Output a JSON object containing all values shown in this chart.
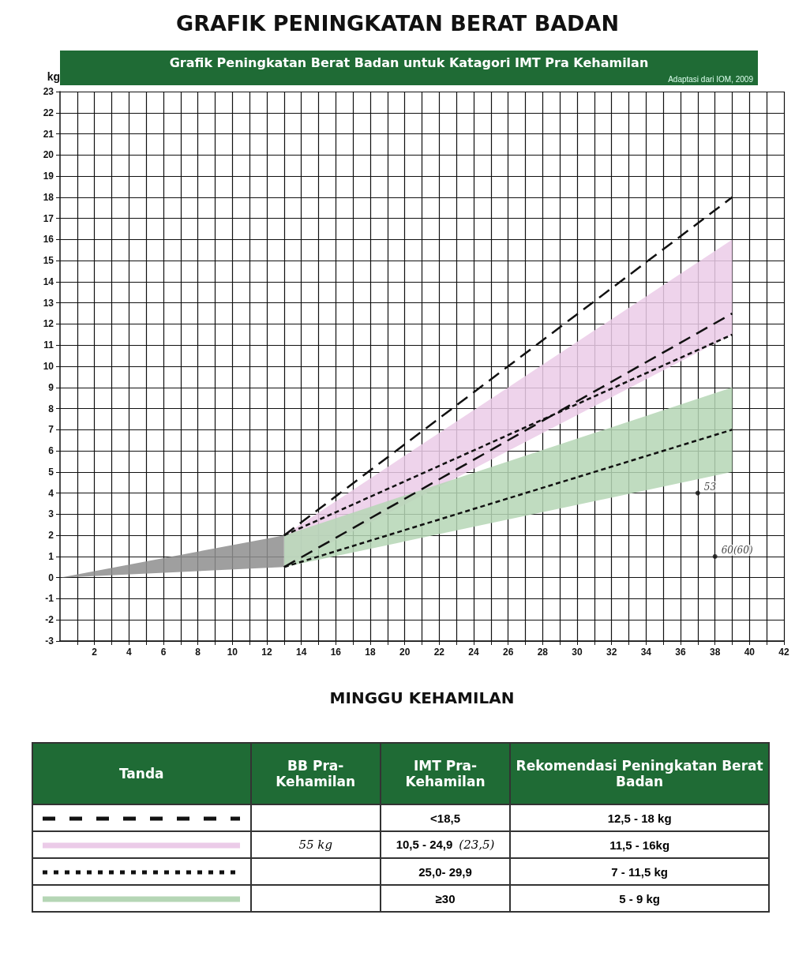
{
  "chart_data": {
    "type": "line",
    "title": "GRAFIK PENINGKATAN BERAT BADAN",
    "subtitle": "Grafik Peningkatan Berat Badan untuk Katagori IMT Pra Kehamilan",
    "xlabel": "MINGGU KEHAMILAN",
    "ylabel": "kg",
    "annotations": [
      {
        "text": "53",
        "x": 37,
        "y": 4
      },
      {
        "text": "60(60)",
        "x": 38,
        "y": 1
      },
      "Adaptasi dari IOM, 2009",
      "Tanda",
      "BB Pra-Kehamilan",
      "IMT Pra-Kehamilan",
      "Rekomendasi Peningkatan Berat Badan",
      "<18,5",
      "12,5 - 18 kg",
      "55 kg",
      "10,5 - 24,9",
      "(23,5)",
      "11,5 - 16kg",
      "25,0- 29,9",
      "7 - 11,5 kg",
      "≥30",
      "5 - 9 kg"
    ],
    "xlim": [
      0,
      42
    ],
    "ylim": [
      -3,
      23
    ],
    "xticks": [
      {
        "value": 1,
        "label": null
      },
      2,
      {
        "value": 3,
        "label": null
      },
      4,
      {
        "value": 5,
        "label": null
      },
      6,
      {
        "value": 7,
        "label": null
      },
      8,
      {
        "value": 9,
        "label": null
      },
      10,
      {
        "value": 11,
        "label": null
      },
      12,
      {
        "value": 13,
        "label": null
      },
      14,
      {
        "value": 15,
        "label": null
      },
      16,
      {
        "value": 17,
        "label": null
      },
      18,
      {
        "value": 19,
        "label": null
      },
      20,
      {
        "value": 21,
        "label": null
      },
      22,
      {
        "value": 23,
        "label": null
      },
      24,
      {
        "value": 25,
        "label": null
      },
      26,
      {
        "value": 27,
        "label": null
      },
      28,
      {
        "value": 29,
        "label": null
      },
      30,
      {
        "value": 31,
        "label": null
      },
      32,
      {
        "value": 33,
        "label": null
      },
      34,
      {
        "value": 35,
        "label": null
      },
      36,
      {
        "value": 37,
        "label": null
      },
      38,
      {
        "value": 39,
        "label": null
      },
      40,
      {
        "value": 41,
        "label": null
      },
      42
    ],
    "yticks": [
      -3,
      -2,
      -1,
      0,
      1,
      2,
      3,
      4,
      5,
      6,
      7,
      8,
      9,
      10,
      11,
      12,
      13,
      14,
      15,
      16,
      17,
      18,
      19,
      20,
      21,
      22,
      23
    ],
    "grid": true,
    "marker": "none",
    "series": [
      {
        "type": "area",
        "color": "#8e8e8e",
        "x": [
          0,
          13
        ],
        "values": [
          null,
          null
        ],
        "lower": [
          0,
          0.5
        ],
        "upper": [
          0,
          2
        ]
      },
      {
        "type": "area",
        "color": "#ebcbe8",
        "x": [
          13,
          39
        ],
        "values": [
          null,
          null
        ],
        "lower": [
          0.5,
          11.5
        ],
        "upper": [
          2,
          16
        ]
      },
      {
        "type": "area",
        "color": "#b5d6b5",
        "x": [
          13,
          39
        ],
        "values": [
          null,
          null
        ],
        "lower": [
          0.5,
          5
        ],
        "upper": [
          2,
          9
        ]
      },
      {
        "color": "#111111",
        "line_style": "dashed",
        "x": [
          13,
          39
        ],
        "values": [
          2,
          18
        ]
      },
      {
        "color": "#111111",
        "line_style": "dashed",
        "x": [
          13,
          39
        ],
        "values": [
          0.5,
          12.5
        ]
      },
      {
        "color": "#111111",
        "line_style": "dotted",
        "x": [
          13,
          39
        ],
        "values": [
          2,
          11.5
        ]
      },
      {
        "color": "#111111",
        "line_style": "dotted",
        "x": [
          13,
          39
        ],
        "values": [
          0.5,
          7
        ]
      },
      {
        "type": "scatter",
        "color": "#111111",
        "marker": "circle",
        "x": [
          37,
          38
        ],
        "values": [
          4,
          1
        ]
      }
    ]
  }
}
